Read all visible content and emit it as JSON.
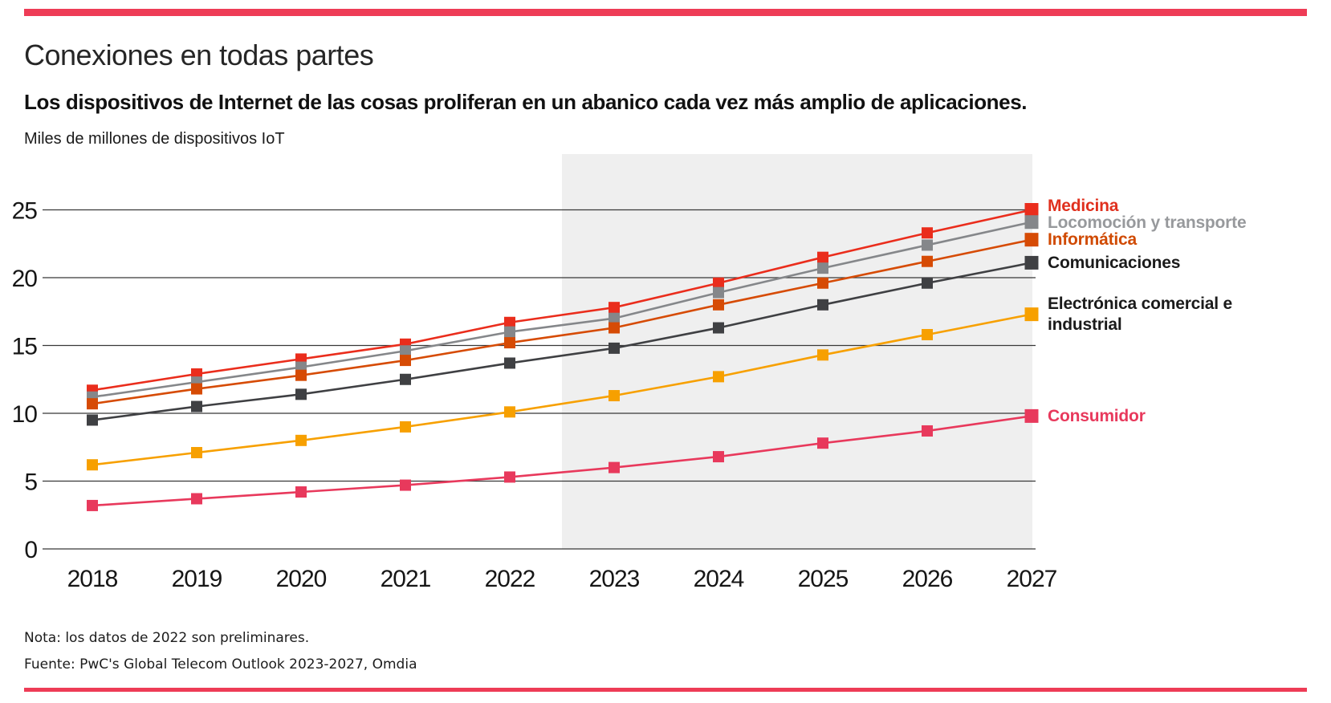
{
  "page": {
    "title": "Conexiones en todas partes",
    "subtitle": "Los dispositivos de Internet de las cosas proliferan en un abanico cada vez más amplio de aplicaciones.",
    "unit_label": "Miles de millones de dispositivos IoT",
    "note": "Nota: los datos de 2022 son preliminares.",
    "source": "Fuente: PwC's Global Telecom Outlook 2023-2027, Omdia",
    "accent_bar_color": "#ee3c56"
  },
  "chart_data": {
    "type": "line",
    "title": "Conexiones en todas partes",
    "subtitle": "Los dispositivos de Internet de las cosas proliferan en un abanico cada vez más amplio de aplicaciones.",
    "xlabel": "",
    "ylabel": "Miles de millones de dispositivos IoT",
    "x": [
      "2018",
      "2019",
      "2020",
      "2021",
      "2022",
      "2023",
      "2024",
      "2025",
      "2026",
      "2027"
    ],
    "y_ticks": [
      "0",
      "5",
      "10",
      "15",
      "20",
      "25"
    ],
    "ylim": [
      0,
      27.5
    ],
    "grid": "horizontal",
    "gridline_color": "#383838",
    "forecast_shading": {
      "from_x": "2022/2023 midpoint",
      "to_x": "2027",
      "color": "#efefef",
      "meaning": "forecast period 2023-2027"
    },
    "legend_position": "right",
    "marker": "square",
    "series": [
      {
        "name": "Medicina",
        "color": "#ea2d1c",
        "label_color": "#e0301e",
        "values": [
          11.7,
          12.9,
          14.0,
          15.1,
          16.7,
          17.8,
          19.6,
          21.5,
          23.3,
          25.0
        ]
      },
      {
        "name": "Locomoción y transporte",
        "color": "#85878a",
        "label_color": "#97999c",
        "values": [
          11.2,
          12.3,
          13.4,
          14.6,
          16.0,
          17.0,
          18.9,
          20.7,
          22.4,
          24.1
        ]
      },
      {
        "name": "Informática",
        "color": "#d64b05",
        "label_color": "#d04a02",
        "values": [
          10.7,
          11.8,
          12.8,
          13.9,
          15.2,
          16.3,
          18.0,
          19.6,
          21.2,
          22.8
        ]
      },
      {
        "name": "Comunicaciones",
        "color": "#3f4043",
        "label_color": "#1b1b1b",
        "values": [
          9.5,
          10.5,
          11.4,
          12.5,
          13.7,
          14.8,
          16.3,
          18.0,
          19.6,
          21.1
        ]
      },
      {
        "name": "Electrónica comercial e industrial",
        "color": "#f7a000",
        "label_color": "#1b1b1b",
        "values": [
          6.2,
          7.1,
          8.0,
          9.0,
          10.1,
          11.3,
          12.7,
          14.3,
          15.8,
          17.3
        ]
      },
      {
        "name": "Consumidor",
        "color": "#e8395c",
        "label_color": "#e8395c",
        "values": [
          3.2,
          3.7,
          4.2,
          4.7,
          5.3,
          6.0,
          6.8,
          7.8,
          8.7,
          9.8
        ]
      }
    ]
  }
}
